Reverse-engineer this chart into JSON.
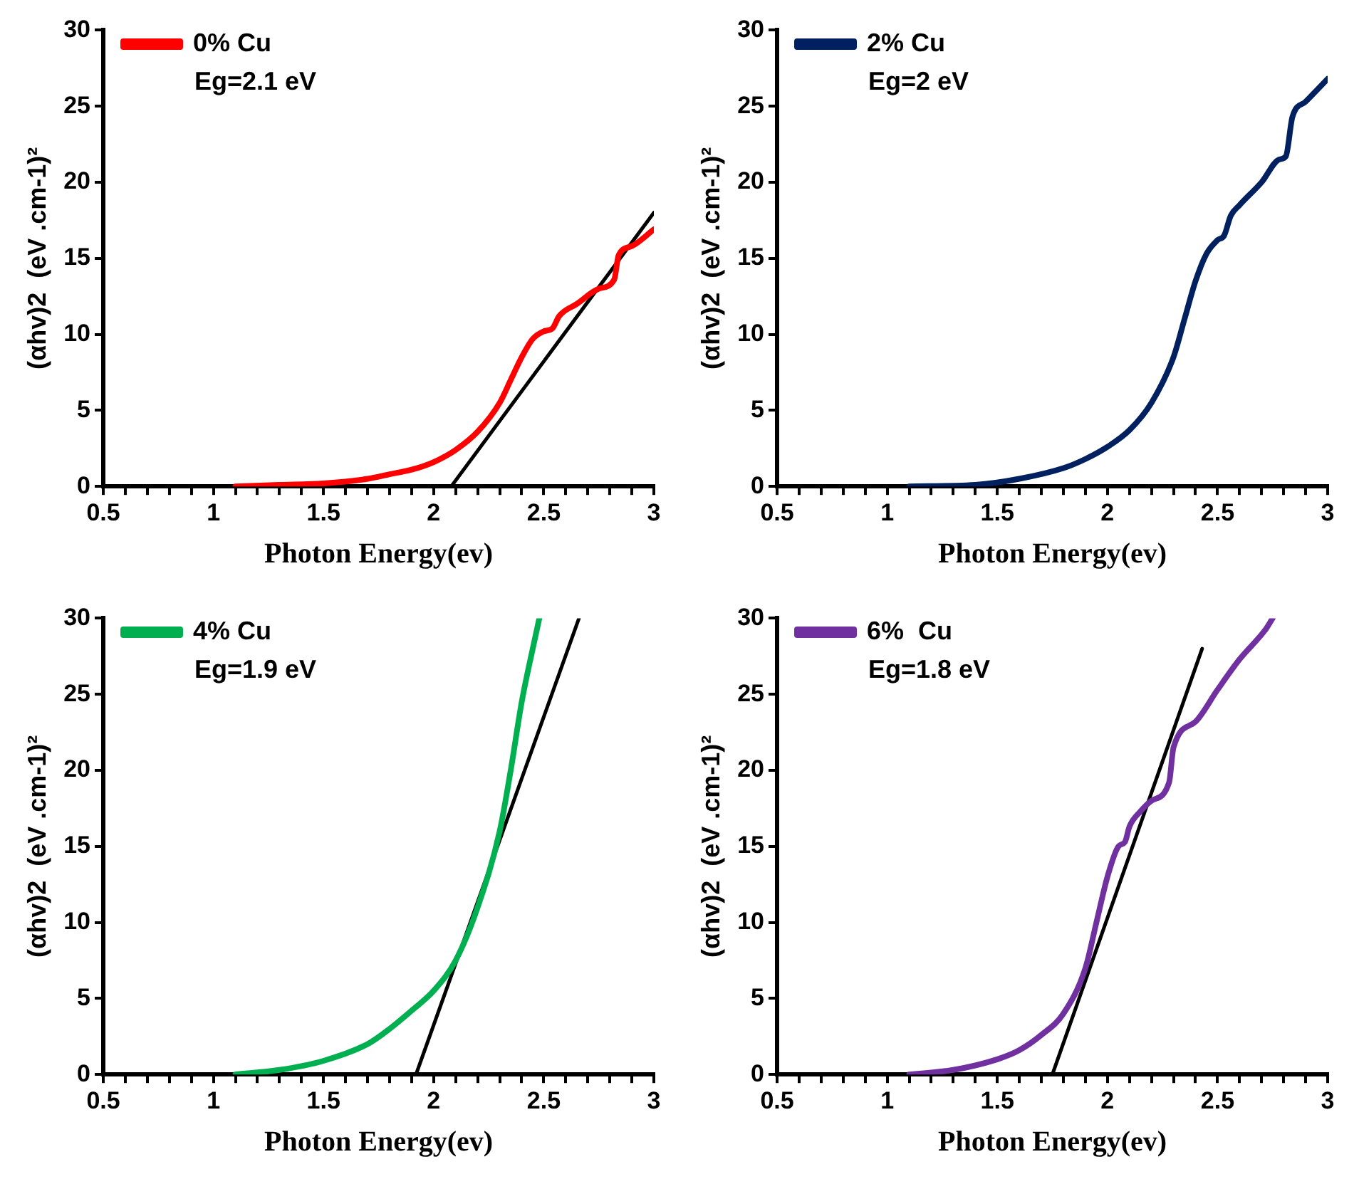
{
  "chart_data": [
    {
      "type": "line",
      "xlabel": "Photon Energy(ev)",
      "ylabel": "(αhv)2  (eV .cm-1)²",
      "annotations": [
        "Eg=2.1 eV"
      ],
      "legend": "top left",
      "grid": false,
      "marker": "none",
      "xlim": [
        0.5,
        3
      ],
      "ylim": [
        0,
        30
      ],
      "xticks": [
        0.5,
        {
          "value": 0.6,
          "label": null
        },
        {
          "value": 0.7,
          "label": null
        },
        {
          "value": 0.8,
          "label": null
        },
        {
          "value": 0.9,
          "label": null
        },
        1,
        {
          "value": 1.1,
          "label": null
        },
        {
          "value": 1.2,
          "label": null
        },
        {
          "value": 1.3,
          "label": null
        },
        {
          "value": 1.4,
          "label": null
        },
        1.5,
        {
          "value": 1.6,
          "label": null
        },
        {
          "value": 1.7,
          "label": null
        },
        {
          "value": 1.8,
          "label": null
        },
        {
          "value": 1.9,
          "label": null
        },
        2,
        {
          "value": 2.1,
          "label": null
        },
        {
          "value": 2.2,
          "label": null
        },
        {
          "value": 2.3,
          "label": null
        },
        {
          "value": 2.4,
          "label": null
        },
        2.5,
        {
          "value": 2.6,
          "label": null
        },
        {
          "value": 2.7,
          "label": null
        },
        {
          "value": 2.8,
          "label": null
        },
        {
          "value": 2.9,
          "label": null
        },
        3
      ],
      "yticks": [
        0,
        5,
        10,
        15,
        20,
        25,
        30
      ],
      "series": [
        {
          "name": "0% Cu",
          "color": "#ff0000",
          "x": [
            1.1,
            1.3,
            1.5,
            1.7,
            1.8,
            1.9,
            2.0,
            2.1,
            2.2,
            2.3,
            2.35,
            2.4,
            2.45,
            2.5,
            2.54,
            2.57,
            2.65,
            2.75,
            2.82,
            2.84,
            2.9,
            3.0
          ],
          "values": [
            0,
            0.1,
            0.2,
            0.5,
            0.8,
            1.1,
            1.6,
            2.4,
            3.6,
            5.5,
            7,
            8.5,
            9.7,
            10.2,
            10.4,
            11.2,
            12,
            13,
            13.6,
            15.2,
            15.8,
            16.9
          ]
        },
        {
          "type": "line",
          "color": "#000000",
          "x": [
            2.08,
            3.0
          ],
          "values": [
            0,
            18
          ]
        }
      ]
    },
    {
      "type": "line",
      "xlabel": "Photon Energy(ev)",
      "ylabel": "(αhv)2  (eV .cm-1)²",
      "annotations": [
        "Eg=2 eV"
      ],
      "legend": "top left",
      "grid": false,
      "marker": "none",
      "xlim": [
        0.5,
        3
      ],
      "ylim": [
        0,
        30
      ],
      "xticks": [
        0.5,
        {
          "value": 0.6,
          "label": null
        },
        {
          "value": 0.7,
          "label": null
        },
        {
          "value": 0.8,
          "label": null
        },
        {
          "value": 0.9,
          "label": null
        },
        1,
        {
          "value": 1.1,
          "label": null
        },
        {
          "value": 1.2,
          "label": null
        },
        {
          "value": 1.3,
          "label": null
        },
        {
          "value": 1.4,
          "label": null
        },
        1.5,
        {
          "value": 1.6,
          "label": null
        },
        {
          "value": 1.7,
          "label": null
        },
        {
          "value": 1.8,
          "label": null
        },
        {
          "value": 1.9,
          "label": null
        },
        2,
        {
          "value": 2.1,
          "label": null
        },
        {
          "value": 2.2,
          "label": null
        },
        {
          "value": 2.3,
          "label": null
        },
        {
          "value": 2.4,
          "label": null
        },
        2.5,
        {
          "value": 2.6,
          "label": null
        },
        {
          "value": 2.7,
          "label": null
        },
        {
          "value": 2.8,
          "label": null
        },
        {
          "value": 2.9,
          "label": null
        },
        3
      ],
      "yticks": [
        0,
        5,
        10,
        15,
        20,
        25,
        30
      ],
      "series": [
        {
          "name": "2% Cu",
          "color": "#002060",
          "x": [
            1.1,
            1.4,
            1.6,
            1.8,
            1.9,
            2.0,
            2.1,
            2.2,
            2.3,
            2.35,
            2.4,
            2.45,
            2.5,
            2.53,
            2.56,
            2.6,
            2.7,
            2.78,
            2.81,
            2.84,
            2.9,
            3.0
          ],
          "values": [
            0,
            0.1,
            0.5,
            1.2,
            1.8,
            2.6,
            3.7,
            5.5,
            8.5,
            11,
            13.5,
            15.3,
            16.2,
            16.5,
            17.8,
            18.5,
            20,
            21.5,
            21.7,
            24.3,
            25.3,
            26.8
          ]
        }
      ]
    },
    {
      "type": "line",
      "xlabel": "Photon Energy(ev)",
      "ylabel": "(αhv)2  (eV .cm-1)²",
      "annotations": [
        "Eg=1.9 eV"
      ],
      "legend": "top left",
      "grid": false,
      "marker": "none",
      "xlim": [
        0.5,
        3
      ],
      "ylim": [
        0,
        30
      ],
      "xticks": [
        0.5,
        {
          "value": 0.6,
          "label": null
        },
        {
          "value": 0.7,
          "label": null
        },
        {
          "value": 0.8,
          "label": null
        },
        {
          "value": 0.9,
          "label": null
        },
        1,
        {
          "value": 1.1,
          "label": null
        },
        {
          "value": 1.2,
          "label": null
        },
        {
          "value": 1.3,
          "label": null
        },
        {
          "value": 1.4,
          "label": null
        },
        1.5,
        {
          "value": 1.6,
          "label": null
        },
        {
          "value": 1.7,
          "label": null
        },
        {
          "value": 1.8,
          "label": null
        },
        {
          "value": 1.9,
          "label": null
        },
        2,
        {
          "value": 2.1,
          "label": null
        },
        {
          "value": 2.2,
          "label": null
        },
        {
          "value": 2.3,
          "label": null
        },
        {
          "value": 2.4,
          "label": null
        },
        2.5,
        {
          "value": 2.6,
          "label": null
        },
        {
          "value": 2.7,
          "label": null
        },
        {
          "value": 2.8,
          "label": null
        },
        {
          "value": 2.9,
          "label": null
        },
        3
      ],
      "yticks": [
        0,
        5,
        10,
        15,
        20,
        25,
        30
      ],
      "series": [
        {
          "name": "4% Cu",
          "color": "#00b050",
          "x": [
            1.1,
            1.3,
            1.5,
            1.7,
            1.8,
            1.9,
            2.0,
            2.1,
            2.2,
            2.3,
            2.35,
            2.4,
            2.45,
            2.48
          ],
          "values": [
            0,
            0.3,
            0.9,
            2,
            3,
            4.2,
            5.5,
            7.5,
            11,
            16,
            20,
            24.5,
            28,
            30
          ]
        },
        {
          "type": "line",
          "color": "#000000",
          "x": [
            1.92,
            2.66
          ],
          "values": [
            0,
            30
          ]
        }
      ]
    },
    {
      "type": "line",
      "xlabel": "Photon Energy(ev)",
      "ylabel": "(αhv)2  (eV .cm-1)²",
      "annotations": [
        "Eg=1.8 eV"
      ],
      "legend": "top left",
      "grid": false,
      "marker": "none",
      "xlim": [
        0.5,
        3
      ],
      "ylim": [
        0,
        30
      ],
      "xticks": [
        0.5,
        {
          "value": 0.6,
          "label": null
        },
        {
          "value": 0.7,
          "label": null
        },
        {
          "value": 0.8,
          "label": null
        },
        {
          "value": 0.9,
          "label": null
        },
        1,
        {
          "value": 1.1,
          "label": null
        },
        {
          "value": 1.2,
          "label": null
        },
        {
          "value": 1.3,
          "label": null
        },
        {
          "value": 1.4,
          "label": null
        },
        1.5,
        {
          "value": 1.6,
          "label": null
        },
        {
          "value": 1.7,
          "label": null
        },
        {
          "value": 1.8,
          "label": null
        },
        {
          "value": 1.9,
          "label": null
        },
        2,
        {
          "value": 2.1,
          "label": null
        },
        {
          "value": 2.2,
          "label": null
        },
        {
          "value": 2.3,
          "label": null
        },
        {
          "value": 2.4,
          "label": null
        },
        2.5,
        {
          "value": 2.6,
          "label": null
        },
        {
          "value": 2.7,
          "label": null
        },
        {
          "value": 2.8,
          "label": null
        },
        {
          "value": 2.9,
          "label": null
        },
        3
      ],
      "yticks": [
        0,
        5,
        10,
        15,
        20,
        25,
        30
      ],
      "series": [
        {
          "name": "6%  Cu",
          "color": "#7030a0",
          "x": [
            1.1,
            1.3,
            1.5,
            1.6,
            1.7,
            1.8,
            1.9,
            1.95,
            2.0,
            2.05,
            2.08,
            2.1,
            2.15,
            2.2,
            2.28,
            2.3,
            2.4,
            2.5,
            2.6,
            2.72,
            2.75
          ],
          "values": [
            0,
            0.3,
            1,
            1.6,
            2.6,
            4,
            7,
            10,
            13,
            15,
            15.3,
            16.3,
            17.3,
            18,
            19.2,
            21.5,
            23.2,
            25.3,
            27.3,
            29.3,
            30
          ]
        },
        {
          "type": "line",
          "color": "#000000",
          "x": [
            1.75,
            2.43
          ],
          "values": [
            0,
            28
          ]
        }
      ]
    }
  ]
}
